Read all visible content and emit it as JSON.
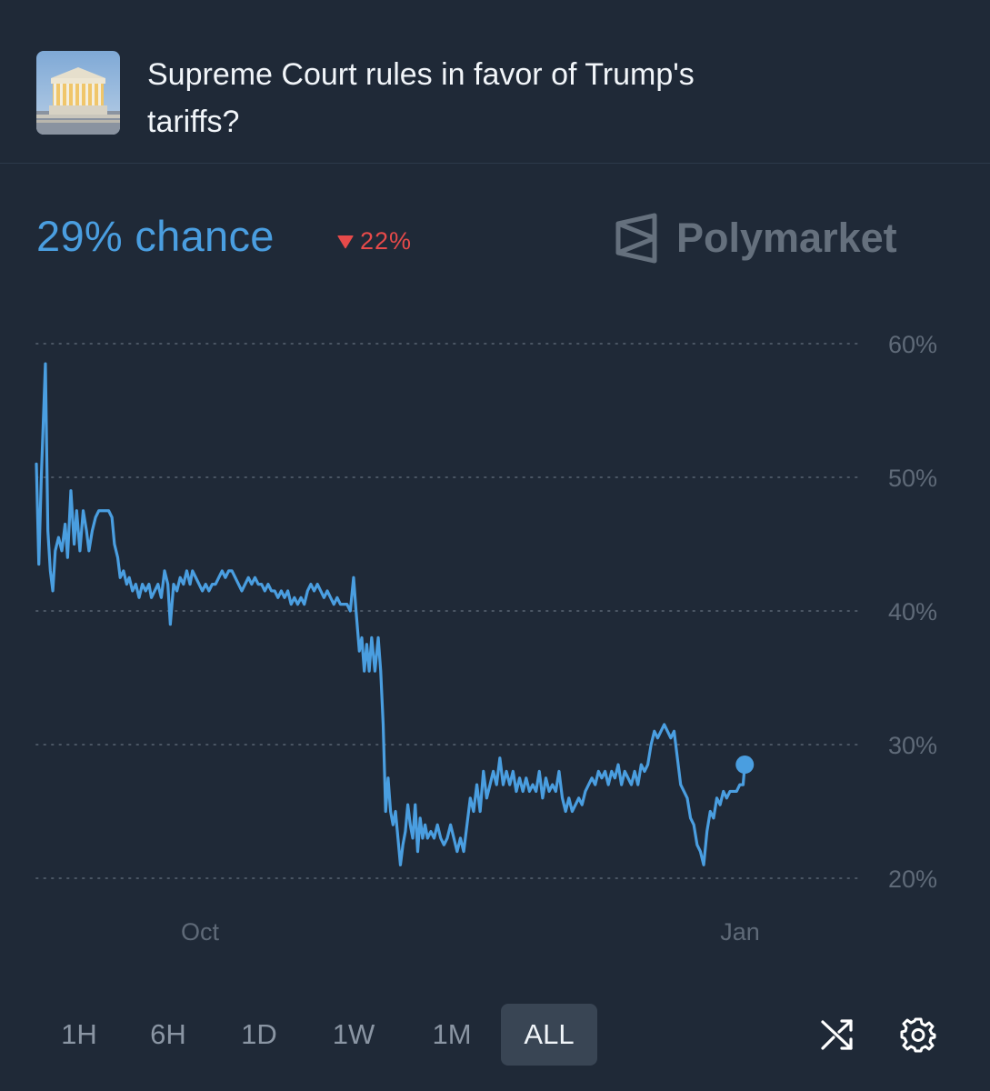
{
  "market": {
    "image_icon": "supreme-court-building-photo",
    "title": "Supreme Court rules in favor of Trump's tariffs?"
  },
  "summary": {
    "chance_text": "29% chance",
    "change_text": "22%",
    "change_direction": "down",
    "change_color": "#e64a4a",
    "accent_color": "#4a9ee0"
  },
  "brand": {
    "name": "Polymarket",
    "icon": "polymarket-logo-icon"
  },
  "chart_data": {
    "type": "line",
    "title": "",
    "xlabel": "",
    "ylabel": "",
    "ylim": [
      20,
      60
    ],
    "yticks": [
      60,
      50,
      40,
      30,
      20
    ],
    "ytick_labels": [
      "60%",
      "50%",
      "40%",
      "30%",
      "20%"
    ],
    "grid": "dotted horizontal",
    "xtick_labels": [
      "Oct",
      "Jan"
    ],
    "xtick_positions": [
      0.2,
      0.86
    ],
    "series": [
      {
        "color": "#4a9ee0",
        "last_point_marker": true,
        "points": [
          [
            0.0,
            51
          ],
          [
            0.003,
            43.5
          ],
          [
            0.006,
            50
          ],
          [
            0.011,
            58.5
          ],
          [
            0.014,
            46
          ],
          [
            0.017,
            43
          ],
          [
            0.02,
            41.5
          ],
          [
            0.023,
            44.5
          ],
          [
            0.027,
            45.5
          ],
          [
            0.031,
            44.5
          ],
          [
            0.035,
            46.5
          ],
          [
            0.038,
            44
          ],
          [
            0.042,
            49
          ],
          [
            0.046,
            45
          ],
          [
            0.049,
            47.5
          ],
          [
            0.053,
            44.5
          ],
          [
            0.057,
            47.5
          ],
          [
            0.061,
            46
          ],
          [
            0.064,
            44.5
          ],
          [
            0.068,
            46
          ],
          [
            0.072,
            47
          ],
          [
            0.076,
            47.5
          ],
          [
            0.08,
            47.5
          ],
          [
            0.088,
            47.5
          ],
          [
            0.092,
            47
          ],
          [
            0.095,
            45
          ],
          [
            0.099,
            44
          ],
          [
            0.102,
            42.5
          ],
          [
            0.106,
            43
          ],
          [
            0.11,
            42
          ],
          [
            0.113,
            42.5
          ],
          [
            0.117,
            41.5
          ],
          [
            0.121,
            42
          ],
          [
            0.125,
            41
          ],
          [
            0.129,
            42
          ],
          [
            0.133,
            41.5
          ],
          [
            0.137,
            42
          ],
          [
            0.14,
            41
          ],
          [
            0.144,
            41.5
          ],
          [
            0.148,
            42
          ],
          [
            0.152,
            41
          ],
          [
            0.156,
            43
          ],
          [
            0.16,
            42
          ],
          [
            0.163,
            39
          ],
          [
            0.167,
            42
          ],
          [
            0.171,
            41.5
          ],
          [
            0.175,
            42.5
          ],
          [
            0.179,
            42
          ],
          [
            0.183,
            43
          ],
          [
            0.187,
            42
          ],
          [
            0.19,
            43
          ],
          [
            0.194,
            42.5
          ],
          [
            0.198,
            42
          ],
          [
            0.202,
            41.5
          ],
          [
            0.206,
            42
          ],
          [
            0.21,
            41.5
          ],
          [
            0.214,
            42
          ],
          [
            0.218,
            42
          ],
          [
            0.222,
            42.5
          ],
          [
            0.226,
            43
          ],
          [
            0.23,
            42.5
          ],
          [
            0.234,
            43
          ],
          [
            0.238,
            43
          ],
          [
            0.242,
            42.5
          ],
          [
            0.246,
            42
          ],
          [
            0.25,
            41.5
          ],
          [
            0.254,
            42
          ],
          [
            0.258,
            42.5
          ],
          [
            0.262,
            42
          ],
          [
            0.266,
            42.5
          ],
          [
            0.27,
            42
          ],
          [
            0.274,
            42
          ],
          [
            0.278,
            41.5
          ],
          [
            0.282,
            42
          ],
          [
            0.286,
            41.5
          ],
          [
            0.29,
            41.5
          ],
          [
            0.294,
            41
          ],
          [
            0.298,
            41.5
          ],
          [
            0.302,
            41
          ],
          [
            0.306,
            41.5
          ],
          [
            0.31,
            40.5
          ],
          [
            0.314,
            41
          ],
          [
            0.318,
            40.5
          ],
          [
            0.322,
            41
          ],
          [
            0.326,
            40.5
          ],
          [
            0.33,
            41.5
          ],
          [
            0.334,
            42
          ],
          [
            0.338,
            41.5
          ],
          [
            0.342,
            42
          ],
          [
            0.346,
            41.5
          ],
          [
            0.35,
            41
          ],
          [
            0.354,
            41.5
          ],
          [
            0.358,
            41
          ],
          [
            0.362,
            40.5
          ],
          [
            0.366,
            41
          ],
          [
            0.37,
            40.5
          ],
          [
            0.374,
            40.5
          ],
          [
            0.378,
            40.5
          ],
          [
            0.382,
            40
          ],
          [
            0.386,
            42.5
          ],
          [
            0.389,
            40
          ],
          [
            0.393,
            37
          ],
          [
            0.396,
            38
          ],
          [
            0.399,
            35.5
          ],
          [
            0.402,
            37.5
          ],
          [
            0.405,
            35.5
          ],
          [
            0.408,
            38
          ],
          [
            0.412,
            35.5
          ],
          [
            0.416,
            38
          ],
          [
            0.419,
            35.5
          ],
          [
            0.422,
            31.5
          ],
          [
            0.425,
            25
          ],
          [
            0.428,
            27.5
          ],
          [
            0.431,
            25
          ],
          [
            0.434,
            24
          ],
          [
            0.437,
            25
          ],
          [
            0.44,
            23
          ],
          [
            0.443,
            21
          ],
          [
            0.446,
            22.5
          ],
          [
            0.449,
            23.5
          ],
          [
            0.452,
            25.5
          ],
          [
            0.455,
            24
          ],
          [
            0.458,
            23
          ],
          [
            0.461,
            25.5
          ],
          [
            0.464,
            22
          ],
          [
            0.467,
            24.5
          ],
          [
            0.47,
            23
          ],
          [
            0.473,
            24
          ],
          [
            0.476,
            23
          ],
          [
            0.48,
            23.5
          ],
          [
            0.484,
            23
          ],
          [
            0.488,
            24
          ],
          [
            0.492,
            23
          ],
          [
            0.496,
            22.5
          ],
          [
            0.5,
            23
          ],
          [
            0.504,
            24
          ],
          [
            0.508,
            23
          ],
          [
            0.512,
            22
          ],
          [
            0.516,
            23
          ],
          [
            0.52,
            22
          ],
          [
            0.524,
            24
          ],
          [
            0.528,
            26
          ],
          [
            0.532,
            25
          ],
          [
            0.536,
            27
          ],
          [
            0.54,
            25
          ],
          [
            0.544,
            28
          ],
          [
            0.548,
            26
          ],
          [
            0.552,
            27
          ],
          [
            0.556,
            28
          ],
          [
            0.56,
            27
          ],
          [
            0.564,
            29
          ],
          [
            0.568,
            27
          ],
          [
            0.572,
            28
          ],
          [
            0.576,
            27
          ],
          [
            0.58,
            28
          ],
          [
            0.584,
            26.5
          ],
          [
            0.588,
            27.5
          ],
          [
            0.592,
            26.5
          ],
          [
            0.596,
            27.5
          ],
          [
            0.6,
            26.5
          ],
          [
            0.604,
            27
          ],
          [
            0.608,
            26.5
          ],
          [
            0.612,
            28
          ],
          [
            0.616,
            26
          ],
          [
            0.62,
            27.5
          ],
          [
            0.624,
            26.5
          ],
          [
            0.628,
            27
          ],
          [
            0.632,
            26.5
          ],
          [
            0.636,
            28
          ],
          [
            0.64,
            26
          ],
          [
            0.644,
            25
          ],
          [
            0.648,
            26
          ],
          [
            0.652,
            25
          ],
          [
            0.656,
            25.5
          ],
          [
            0.66,
            26
          ],
          [
            0.664,
            25.5
          ],
          [
            0.668,
            26.5
          ],
          [
            0.672,
            27
          ],
          [
            0.676,
            27.5
          ],
          [
            0.68,
            27
          ],
          [
            0.684,
            28
          ],
          [
            0.688,
            27.5
          ],
          [
            0.692,
            28
          ],
          [
            0.696,
            27
          ],
          [
            0.7,
            28
          ],
          [
            0.704,
            27.5
          ],
          [
            0.708,
            28.5
          ],
          [
            0.712,
            27
          ],
          [
            0.716,
            28
          ],
          [
            0.72,
            27.5
          ],
          [
            0.724,
            27
          ],
          [
            0.728,
            28
          ],
          [
            0.732,
            27
          ],
          [
            0.736,
            28.5
          ],
          [
            0.74,
            28
          ],
          [
            0.744,
            28.5
          ],
          [
            0.748,
            30
          ],
          [
            0.752,
            31
          ],
          [
            0.756,
            30.5
          ],
          [
            0.76,
            31
          ],
          [
            0.764,
            31.5
          ],
          [
            0.768,
            31
          ],
          [
            0.772,
            30.5
          ],
          [
            0.776,
            31
          ],
          [
            0.78,
            29
          ],
          [
            0.784,
            27
          ],
          [
            0.788,
            26.5
          ],
          [
            0.792,
            26
          ],
          [
            0.796,
            24.5
          ],
          [
            0.8,
            24
          ],
          [
            0.804,
            22.5
          ],
          [
            0.808,
            22
          ],
          [
            0.812,
            21
          ],
          [
            0.816,
            23.5
          ],
          [
            0.82,
            25
          ],
          [
            0.824,
            24.5
          ],
          [
            0.828,
            26
          ],
          [
            0.832,
            25.5
          ],
          [
            0.836,
            26.5
          ],
          [
            0.84,
            26
          ],
          [
            0.844,
            26.5
          ],
          [
            0.848,
            26.5
          ],
          [
            0.852,
            26.5
          ],
          [
            0.856,
            27
          ],
          [
            0.86,
            27
          ],
          [
            0.862,
            28.5
          ]
        ]
      }
    ]
  },
  "ranges": {
    "buttons": [
      "1H",
      "6H",
      "1D",
      "1W",
      "1M",
      "ALL"
    ],
    "active": "ALL"
  },
  "tools": {
    "shuffle_icon": "shuffle-icon",
    "settings_icon": "gear-icon"
  }
}
